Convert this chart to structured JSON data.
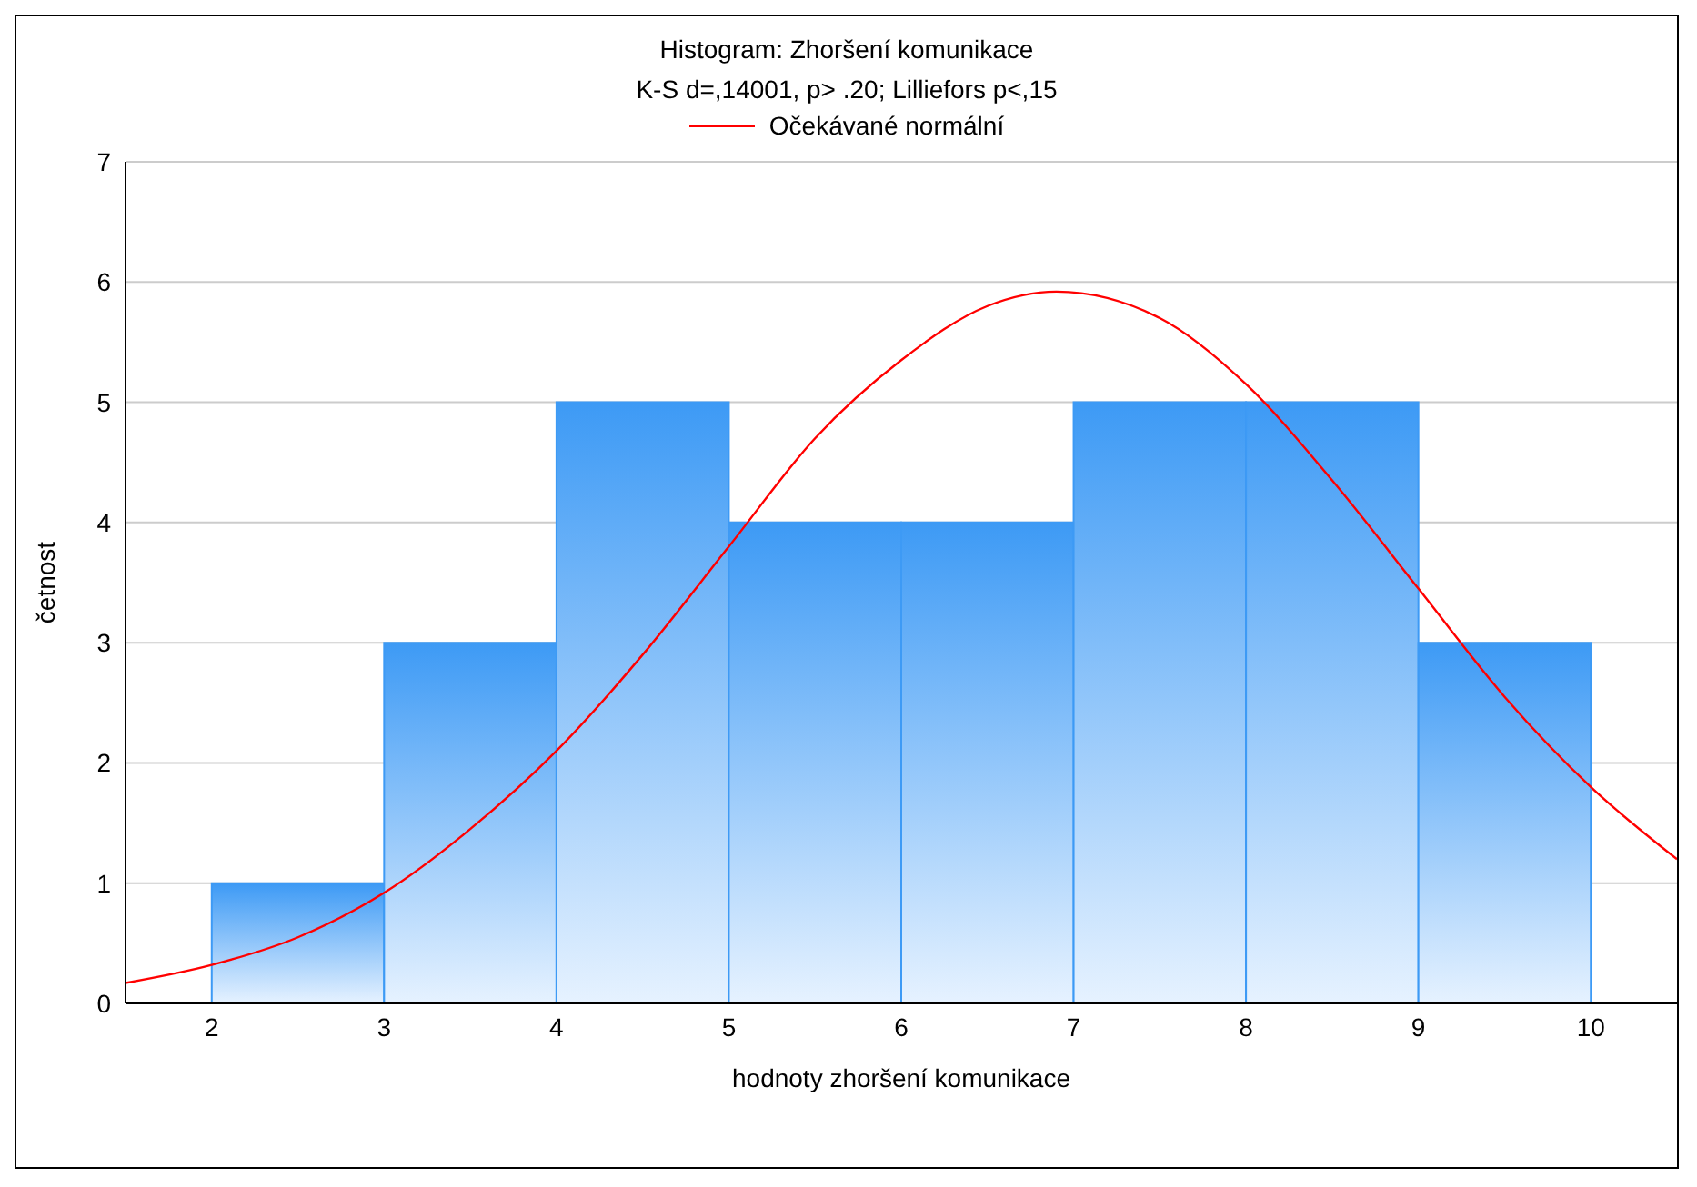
{
  "chart_data": {
    "type": "histogram",
    "title": "Histogram: Zhoršení komunikace",
    "subtitle": "K-S d=,14001, p> .20; Lilliefors p<,15",
    "xlabel": "hodnoty zhoršení komunikace",
    "ylabel": "četnost",
    "bins": [
      2,
      3,
      4,
      5,
      6,
      7,
      8,
      9,
      10
    ],
    "values": [
      1,
      3,
      5,
      4,
      4,
      5,
      5,
      3
    ],
    "color": "#3d9af5",
    "series": [
      {
        "type": "line",
        "name": "Očekávané normální",
        "color": "#ff0000",
        "x": [
          1.5,
          2,
          2.5,
          3,
          3.5,
          4,
          4.5,
          5,
          5.5,
          6,
          6.5,
          6.9,
          7.5,
          8,
          8.5,
          9,
          9.5,
          10,
          10.5
        ],
        "values": [
          0.17,
          0.32,
          0.55,
          0.92,
          1.45,
          2.1,
          2.9,
          3.8,
          4.7,
          5.35,
          5.8,
          5.92,
          5.7,
          5.15,
          4.35,
          3.45,
          2.55,
          1.8,
          1.2
        ]
      }
    ],
    "xlim": [
      1.5,
      10.5
    ],
    "xticks": [
      2,
      3,
      4,
      5,
      6,
      7,
      8,
      9,
      10
    ],
    "ylim": [
      0,
      7
    ],
    "yticks": [
      0,
      1,
      2,
      3,
      4,
      5,
      6,
      7
    ],
    "grid": "y",
    "legend": "top"
  }
}
